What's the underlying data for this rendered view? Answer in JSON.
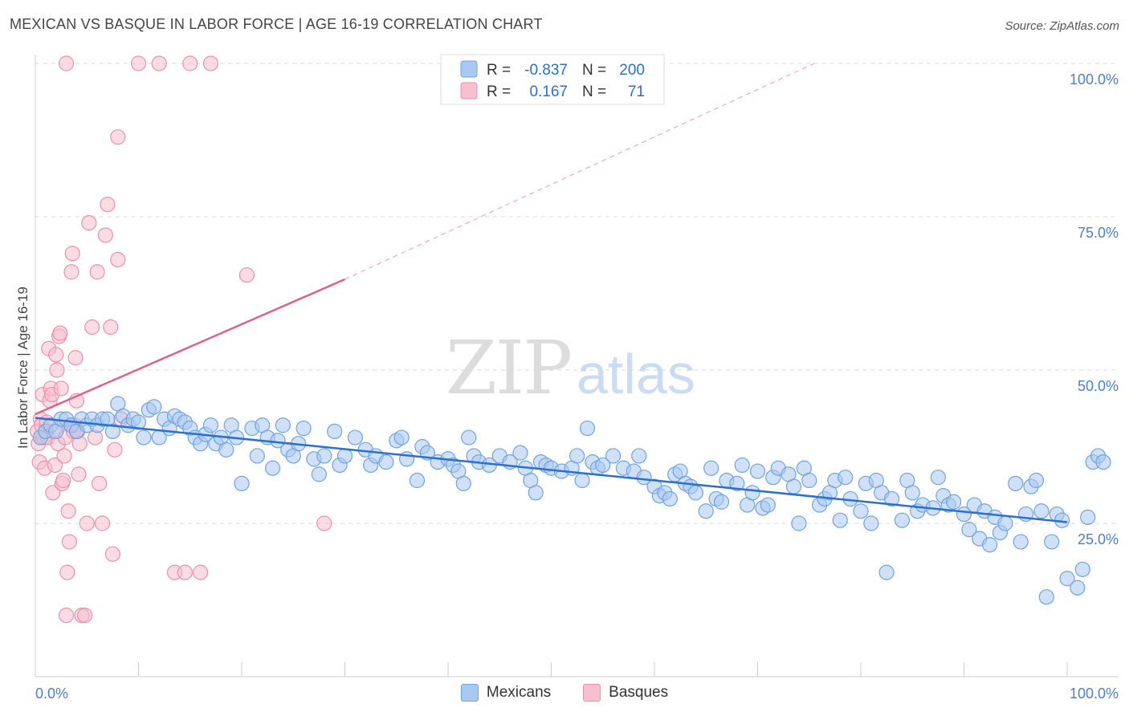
{
  "header": {
    "title": "MEXICAN VS BASQUE IN LABOR FORCE | AGE 16-19 CORRELATION CHART",
    "source": "Source: ZipAtlas.com"
  },
  "watermark": {
    "zip": "ZIP",
    "atlas": "atlas"
  },
  "colors": {
    "mexicans_fill": "#a9c8f0",
    "mexicans_stroke": "#6fa3e0",
    "mexicans_line": "#2b6fd0",
    "basques_fill": "#f7bfcf",
    "basques_stroke": "#ec8fab",
    "basques_line": "#e0608a",
    "tick_label": "#4a7fd0",
    "stat_value": "#2b6fd0"
  },
  "legend_top": {
    "rows": [
      {
        "r_label": "R =",
        "r_value": "-0.837",
        "n_label": "N =",
        "n_value": "200"
      },
      {
        "r_label": "R =",
        "r_value": "0.167",
        "n_label": "N =",
        "n_value": "71"
      }
    ]
  },
  "legend_bottom": {
    "mexicans": "Mexicans",
    "basques": "Basques"
  },
  "chart_data": {
    "type": "scatter",
    "title": "MEXICAN VS BASQUE IN LABOR FORCE | AGE 16-19 CORRELATION CHART",
    "ylabel": "In Labor Force | Age 16-19",
    "xlabel": "",
    "xlim": [
      0,
      100
    ],
    "ylim": [
      0,
      104
    ],
    "x_tick_labels": {
      "left": "0.0%",
      "right": "100.0%"
    },
    "y_ticks": [
      {
        "value": 25,
        "label": "25.0%"
      },
      {
        "value": 50,
        "label": "50.0%"
      },
      {
        "value": 75,
        "label": "75.0%"
      },
      {
        "value": 100,
        "label": "100.0%"
      }
    ],
    "grid": "horizontal dashed",
    "legend_position": "top-center",
    "series": [
      {
        "name": "Mexicans",
        "r": -0.837,
        "n": 200,
        "trend": {
          "x": [
            0,
            100
          ],
          "y": [
            42.2,
            25.2
          ]
        },
        "points": [
          [
            0.5,
            39
          ],
          [
            1,
            40
          ],
          [
            1.5,
            41
          ],
          [
            2,
            40
          ],
          [
            2.5,
            42
          ],
          [
            3,
            42
          ],
          [
            3.5,
            41
          ],
          [
            4,
            40
          ],
          [
            4.5,
            42
          ],
          [
            5,
            41
          ],
          [
            5.5,
            42
          ],
          [
            6,
            41
          ],
          [
            6.5,
            42
          ],
          [
            7,
            42
          ],
          [
            7.5,
            40
          ],
          [
            8,
            44.5
          ],
          [
            8.5,
            42.5
          ],
          [
            9,
            41
          ],
          [
            9.5,
            42
          ],
          [
            10,
            41.5
          ],
          [
            10.5,
            39
          ],
          [
            11,
            43.5
          ],
          [
            11.5,
            44
          ],
          [
            12,
            39
          ],
          [
            12.5,
            42
          ],
          [
            13,
            40.5
          ],
          [
            13.5,
            42.5
          ],
          [
            14,
            42
          ],
          [
            14.5,
            41.5
          ],
          [
            15,
            40.5
          ],
          [
            15.5,
            39
          ],
          [
            16,
            38
          ],
          [
            16.5,
            39.5
          ],
          [
            17,
            41
          ],
          [
            17.5,
            38
          ],
          [
            18,
            39
          ],
          [
            18.5,
            37
          ],
          [
            19,
            41
          ],
          [
            19.5,
            39
          ],
          [
            20,
            31.5
          ],
          [
            21,
            40.5
          ],
          [
            21.5,
            36
          ],
          [
            22,
            41
          ],
          [
            22.5,
            39
          ],
          [
            23,
            34
          ],
          [
            23.5,
            38.5
          ],
          [
            24,
            41
          ],
          [
            24.5,
            37
          ],
          [
            25,
            36
          ],
          [
            25.5,
            38
          ],
          [
            26,
            40.5
          ],
          [
            27,
            35.5
          ],
          [
            27.5,
            33
          ],
          [
            28,
            36
          ],
          [
            29,
            40
          ],
          [
            29.5,
            34.5
          ],
          [
            30,
            36
          ],
          [
            31,
            39
          ],
          [
            32,
            37
          ],
          [
            32.5,
            34.5
          ],
          [
            33,
            36
          ],
          [
            34,
            35
          ],
          [
            35,
            38.5
          ],
          [
            35.5,
            39
          ],
          [
            36,
            35.5
          ],
          [
            37,
            32
          ],
          [
            37.5,
            37.5
          ],
          [
            38,
            36.5
          ],
          [
            39,
            35
          ],
          [
            40,
            35.5
          ],
          [
            40.5,
            34.5
          ],
          [
            41,
            33.5
          ],
          [
            41.5,
            31.5
          ],
          [
            42,
            39
          ],
          [
            42.5,
            36
          ],
          [
            43,
            35
          ],
          [
            44,
            34.5
          ],
          [
            45,
            36
          ],
          [
            46,
            35
          ],
          [
            47,
            36.5
          ],
          [
            47.5,
            34
          ],
          [
            48,
            32
          ],
          [
            48.5,
            30
          ],
          [
            49,
            35
          ],
          [
            49.5,
            34.5
          ],
          [
            50,
            34
          ],
          [
            51,
            33.5
          ],
          [
            52,
            34
          ],
          [
            52.5,
            36
          ],
          [
            53,
            32
          ],
          [
            53.5,
            40.5
          ],
          [
            54,
            35
          ],
          [
            54.5,
            34
          ],
          [
            55,
            34.5
          ],
          [
            56,
            36
          ],
          [
            57,
            34
          ],
          [
            58,
            33.5
          ],
          [
            58.5,
            36
          ],
          [
            59,
            32.5
          ],
          [
            60,
            31
          ],
          [
            60.5,
            29.5
          ],
          [
            61,
            30
          ],
          [
            61.5,
            29
          ],
          [
            62,
            33
          ],
          [
            62.5,
            33.5
          ],
          [
            63,
            31.5
          ],
          [
            63.5,
            31
          ],
          [
            64,
            30
          ],
          [
            65,
            27
          ],
          [
            65.5,
            34
          ],
          [
            66,
            29
          ],
          [
            66.5,
            28.5
          ],
          [
            67,
            32
          ],
          [
            68,
            31.5
          ],
          [
            68.5,
            34.5
          ],
          [
            69,
            28
          ],
          [
            69.5,
            30
          ],
          [
            70,
            33.5
          ],
          [
            70.5,
            27.5
          ],
          [
            71,
            28
          ],
          [
            71.5,
            32.5
          ],
          [
            72,
            34
          ],
          [
            73,
            33
          ],
          [
            73.5,
            31
          ],
          [
            74,
            25
          ],
          [
            74.5,
            34
          ],
          [
            75,
            32
          ],
          [
            76,
            28
          ],
          [
            76.5,
            29
          ],
          [
            77,
            30
          ],
          [
            77.5,
            32
          ],
          [
            78,
            25.5
          ],
          [
            78.5,
            32.5
          ],
          [
            79,
            29
          ],
          [
            80,
            27
          ],
          [
            80.5,
            31.5
          ],
          [
            81,
            25
          ],
          [
            81.5,
            32
          ],
          [
            82,
            30
          ],
          [
            82.5,
            17
          ],
          [
            83,
            29
          ],
          [
            84,
            25.5
          ],
          [
            84.5,
            32
          ],
          [
            85,
            30
          ],
          [
            85.5,
            27
          ],
          [
            86,
            28
          ],
          [
            87,
            27.5
          ],
          [
            87.5,
            32.5
          ],
          [
            88,
            29.5
          ],
          [
            88.5,
            28
          ],
          [
            89,
            28.5
          ],
          [
            90,
            26.5
          ],
          [
            90.5,
            24
          ],
          [
            91,
            28
          ],
          [
            91.5,
            22.5
          ],
          [
            92,
            27
          ],
          [
            92.5,
            21.5
          ],
          [
            93,
            26
          ],
          [
            93.5,
            23.5
          ],
          [
            94,
            25
          ],
          [
            95,
            31.5
          ],
          [
            95.5,
            22
          ],
          [
            96,
            26.5
          ],
          [
            96.5,
            31
          ],
          [
            97,
            32
          ],
          [
            97.5,
            27
          ],
          [
            98,
            13
          ],
          [
            98.5,
            22
          ],
          [
            99,
            26.5
          ],
          [
            99.5,
            25.5
          ],
          [
            100,
            16
          ],
          [
            101,
            14.5
          ],
          [
            101.5,
            17.5
          ],
          [
            102,
            26
          ],
          [
            102.5,
            35
          ],
          [
            103,
            36
          ],
          [
            103.5,
            35
          ]
        ]
      },
      {
        "name": "Basques",
        "r": 0.167,
        "n": 71,
        "trend": {
          "x": [
            0,
            30
          ],
          "y": [
            42.8,
            64.8
          ]
        },
        "trend_extension": {
          "x": [
            30,
            75.5
          ],
          "y": [
            64.8,
            100
          ]
        },
        "points": [
          [
            0.2,
            40
          ],
          [
            0.3,
            38
          ],
          [
            0.4,
            35
          ],
          [
            0.5,
            42
          ],
          [
            0.6,
            41
          ],
          [
            0.7,
            46
          ],
          [
            0.8,
            39
          ],
          [
            0.9,
            34
          ],
          [
            1,
            40
          ],
          [
            1.1,
            41.5
          ],
          [
            1.2,
            39
          ],
          [
            1.3,
            53.5
          ],
          [
            1.4,
            45
          ],
          [
            1.5,
            47
          ],
          [
            1.6,
            46
          ],
          [
            1.7,
            30
          ],
          [
            1.8,
            40
          ],
          [
            1.9,
            34.5
          ],
          [
            2,
            52.5
          ],
          [
            2.1,
            50
          ],
          [
            2.2,
            38
          ],
          [
            2.3,
            55.5
          ],
          [
            2.4,
            56
          ],
          [
            2.5,
            47
          ],
          [
            2.6,
            31.5
          ],
          [
            2.7,
            32
          ],
          [
            2.8,
            36
          ],
          [
            2.9,
            39
          ],
          [
            3,
            10
          ],
          [
            3.1,
            17
          ],
          [
            3.2,
            27
          ],
          [
            3.3,
            22
          ],
          [
            3.4,
            41
          ],
          [
            3.5,
            66
          ],
          [
            3.6,
            69
          ],
          [
            3.7,
            40
          ],
          [
            3.8,
            41
          ],
          [
            3.9,
            52
          ],
          [
            4,
            45
          ],
          [
            4.1,
            40
          ],
          [
            4.2,
            33
          ],
          [
            4.3,
            38
          ],
          [
            4.5,
            10
          ],
          [
            4.8,
            10
          ],
          [
            5,
            25
          ],
          [
            5.2,
            74
          ],
          [
            5.5,
            57
          ],
          [
            5.8,
            39
          ],
          [
            6,
            66
          ],
          [
            6.2,
            31.5
          ],
          [
            6.5,
            25
          ],
          [
            6.8,
            72
          ],
          [
            7,
            77
          ],
          [
            7.3,
            57
          ],
          [
            7.5,
            20
          ],
          [
            7.7,
            37
          ],
          [
            8,
            68
          ],
          [
            8.3,
            42
          ],
          [
            3,
            100
          ],
          [
            8,
            88
          ],
          [
            10,
            100
          ],
          [
            12,
            100
          ],
          [
            13.5,
            17
          ],
          [
            14.5,
            17
          ],
          [
            15,
            100
          ],
          [
            16,
            17
          ],
          [
            17,
            100
          ],
          [
            20.5,
            65.5
          ],
          [
            28,
            25
          ]
        ]
      }
    ]
  }
}
